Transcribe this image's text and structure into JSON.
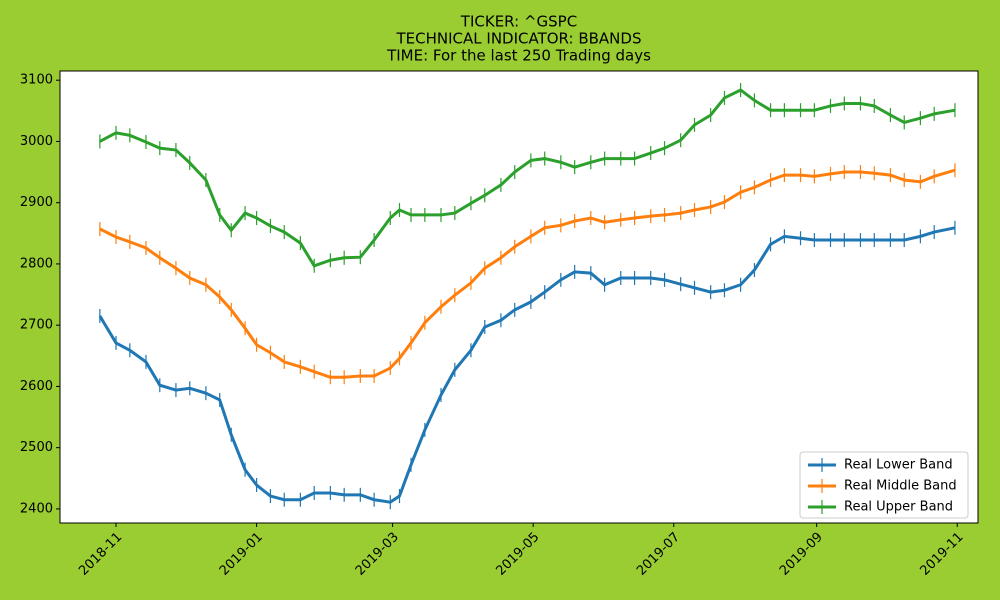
{
  "chart_data": {
    "type": "line",
    "title": [
      "TICKER:  ^GSPC",
      "TECHNICAL INDICATOR:  BBANDS",
      "TIME: For the last 250 Trading days"
    ],
    "x": [
      -7,
      0,
      6,
      13,
      19,
      26,
      32,
      39,
      45,
      50,
      56,
      61,
      67,
      73,
      80,
      86,
      93,
      99,
      106,
      112,
      119,
      123,
      128,
      134,
      141,
      147,
      154,
      160,
      167,
      173,
      180,
      186,
      193,
      199,
      206,
      212,
      219,
      225,
      232,
      238,
      245,
      251,
      258,
      264,
      271,
      277,
      284,
      290,
      297,
      303,
      310,
      316,
      323,
      329,
      336,
      342,
      349,
      355,
      364
    ],
    "series": [
      {
        "name": "Real Lower Band",
        "color": "#1f77b4",
        "values": [
          2715,
          2671,
          2659,
          2640,
          2602,
          2594,
          2597,
          2589,
          2578,
          2521,
          2464,
          2439,
          2421,
          2415,
          2415,
          2426,
          2426,
          2423,
          2423,
          2415,
          2411,
          2421,
          2472,
          2529,
          2586,
          2627,
          2659,
          2697,
          2708,
          2725,
          2738,
          2754,
          2774,
          2787,
          2785,
          2766,
          2777,
          2777,
          2777,
          2774,
          2767,
          2761,
          2754,
          2757,
          2766,
          2790,
          2832,
          2845,
          2842,
          2839,
          2839,
          2839,
          2839,
          2839,
          2839,
          2839,
          2845,
          2852,
          2859
        ]
      },
      {
        "name": "Real Middle Band",
        "color": "#ff7f0e",
        "values": [
          2857,
          2844,
          2836,
          2826,
          2810,
          2793,
          2777,
          2766,
          2746,
          2725,
          2695,
          2668,
          2655,
          2640,
          2632,
          2624,
          2615,
          2615,
          2617,
          2617,
          2630,
          2646,
          2671,
          2704,
          2730,
          2749,
          2769,
          2793,
          2810,
          2828,
          2845,
          2859,
          2863,
          2870,
          2875,
          2868,
          2872,
          2875,
          2878,
          2880,
          2883,
          2888,
          2893,
          2901,
          2917,
          2925,
          2937,
          2945,
          2945,
          2943,
          2947,
          2950,
          2950,
          2948,
          2945,
          2937,
          2934,
          2943,
          2953
        ]
      },
      {
        "name": "Real Upper Band",
        "color": "#2ca02c",
        "values": [
          3000,
          3014,
          3010,
          2999,
          2989,
          2986,
          2965,
          2937,
          2880,
          2855,
          2883,
          2875,
          2862,
          2852,
          2834,
          2797,
          2806,
          2810,
          2811,
          2839,
          2875,
          2888,
          2880,
          2880,
          2880,
          2883,
          2899,
          2912,
          2929,
          2950,
          2969,
          2972,
          2966,
          2958,
          2966,
          2972,
          2972,
          2972,
          2981,
          2989,
          3002,
          3027,
          3043,
          3071,
          3084,
          3067,
          3051,
          3051,
          3051,
          3051,
          3058,
          3062,
          3062,
          3058,
          3043,
          3031,
          3038,
          3045,
          3051
        ]
      }
    ],
    "xlim": [
      -24.3,
      374
    ],
    "xticks": [
      {
        "value": 0,
        "label": "2018-11"
      },
      {
        "value": 61,
        "label": "2019-01"
      },
      {
        "value": 120,
        "label": "2019-03"
      },
      {
        "value": 181,
        "label": "2019-05"
      },
      {
        "value": 242,
        "label": "2019-07"
      },
      {
        "value": 304,
        "label": "2019-09"
      },
      {
        "value": 365,
        "label": "2019-11"
      }
    ],
    "ylim": [
      2377,
      3115
    ],
    "yticks": [
      2400,
      2500,
      2600,
      2700,
      2800,
      2900,
      3000,
      3100
    ],
    "legend": "lower right"
  }
}
